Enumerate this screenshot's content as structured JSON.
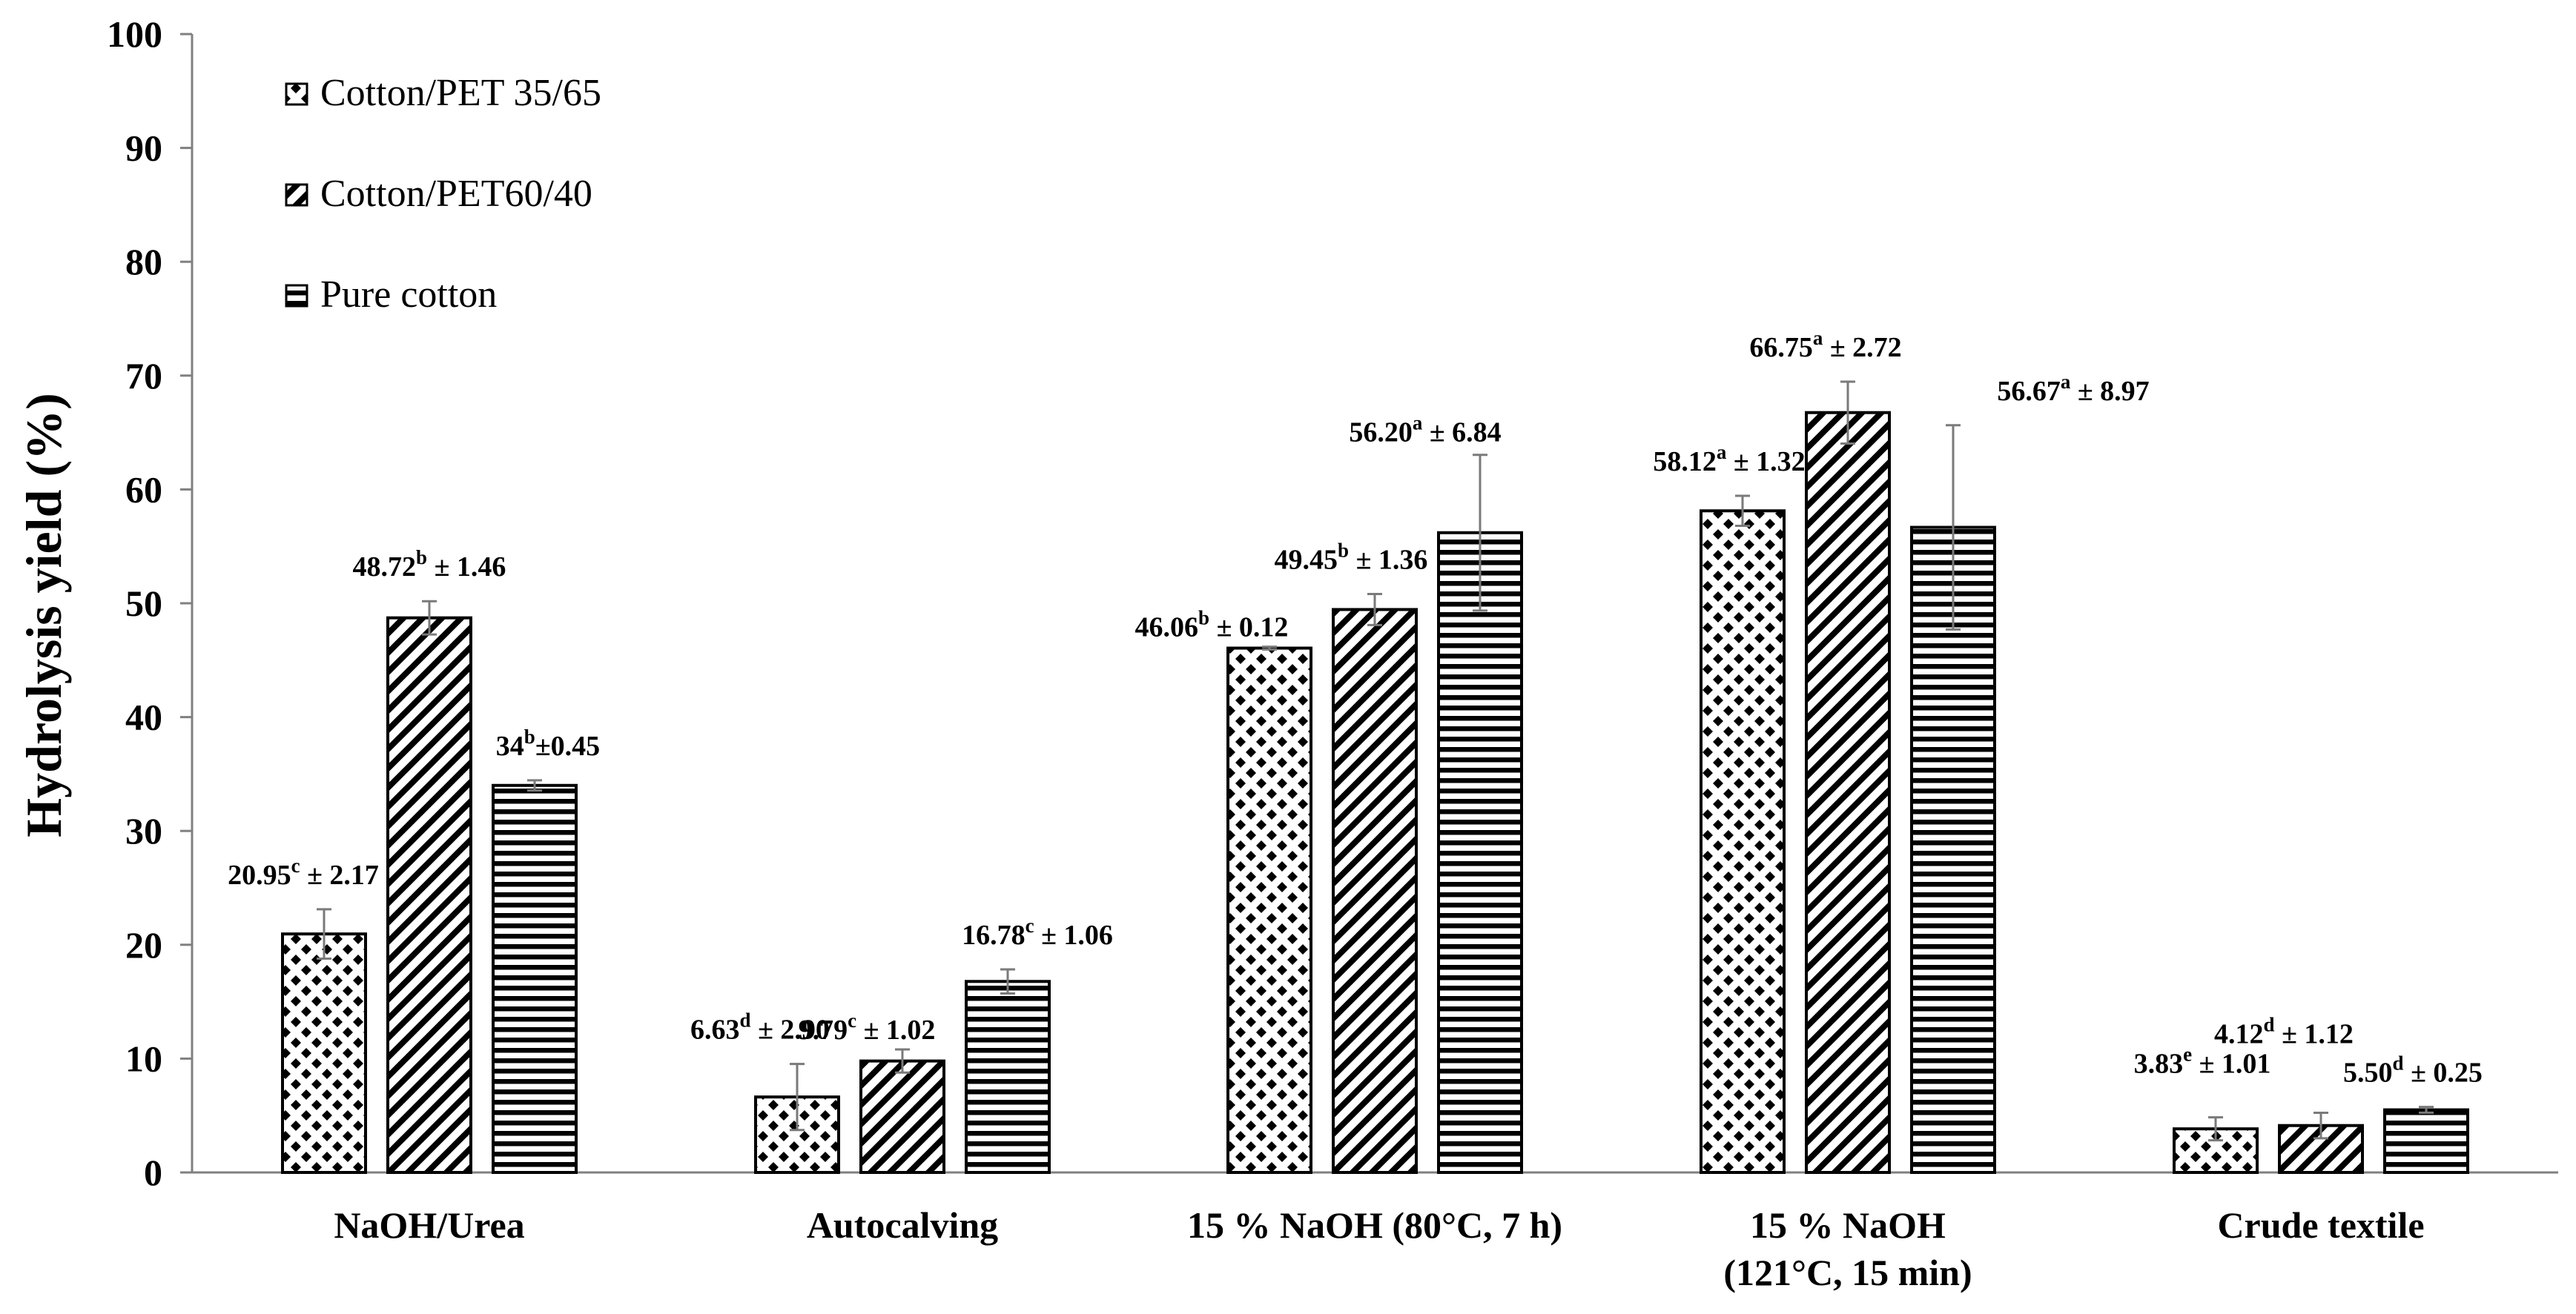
{
  "chart_data": {
    "type": "bar",
    "title": "",
    "xlabel": "",
    "ylabel": "Hydrolysis yield (%)",
    "ylim": [
      0,
      100
    ],
    "ytick_step": 10,
    "grid": false,
    "legend_position": "top-left",
    "categories": [
      [
        "NaOH/Urea"
      ],
      [
        "Autocalving"
      ],
      [
        "15 % NaOH (80°C, 7 h)"
      ],
      [
        "15 % NaOH",
        "(121°C, 15 min)"
      ],
      [
        "Crude textile"
      ]
    ],
    "series": [
      {
        "name": "Cotton/PET 35/65",
        "pattern": "diamond-checker",
        "values": [
          20.95,
          6.63,
          46.06,
          58.12,
          3.83
        ],
        "errors": [
          2.17,
          2.9,
          0.12,
          1.32,
          1.01
        ],
        "labels": [
          [
            "20.95",
            "c",
            " ± 2.17"
          ],
          [
            "6.63",
            "d",
            " ± 2.90"
          ],
          [
            "46.06",
            "b",
            " ± 0.12"
          ],
          [
            "58.12",
            "a",
            " ± 1.32"
          ],
          [
            "3.83",
            "e",
            " ± 1.01"
          ]
        ]
      },
      {
        "name": "Cotton/PET60/40",
        "pattern": "diagonal-stripes",
        "values": [
          48.72,
          9.79,
          49.45,
          66.75,
          4.12
        ],
        "errors": [
          1.46,
          1.02,
          1.36,
          2.72,
          1.12
        ],
        "labels": [
          [
            "48.72",
            "b",
            " ± 1.46"
          ],
          [
            "9.79",
            "c",
            " ± 1.02"
          ],
          [
            "49.45",
            "b",
            " ± 1.36"
          ],
          [
            "66.75",
            "a",
            " ± 2.72"
          ],
          [
            "4.12",
            "d",
            " ± 1.12"
          ]
        ]
      },
      {
        "name": "Pure cotton",
        "pattern": "horizontal-stripes",
        "values": [
          34,
          16.78,
          56.2,
          56.67,
          5.5
        ],
        "errors": [
          0.45,
          1.06,
          6.84,
          8.97,
          0.25
        ],
        "labels": [
          [
            "34",
            "b",
            "±0.45"
          ],
          [
            "16.78",
            "c",
            " ± 1.06"
          ],
          [
            "56.20",
            "a",
            " ± 6.84"
          ],
          [
            "56.67",
            "a",
            " ± 8.97"
          ],
          [
            "5.50",
            "d",
            " ± 0.25"
          ]
        ]
      }
    ]
  }
}
